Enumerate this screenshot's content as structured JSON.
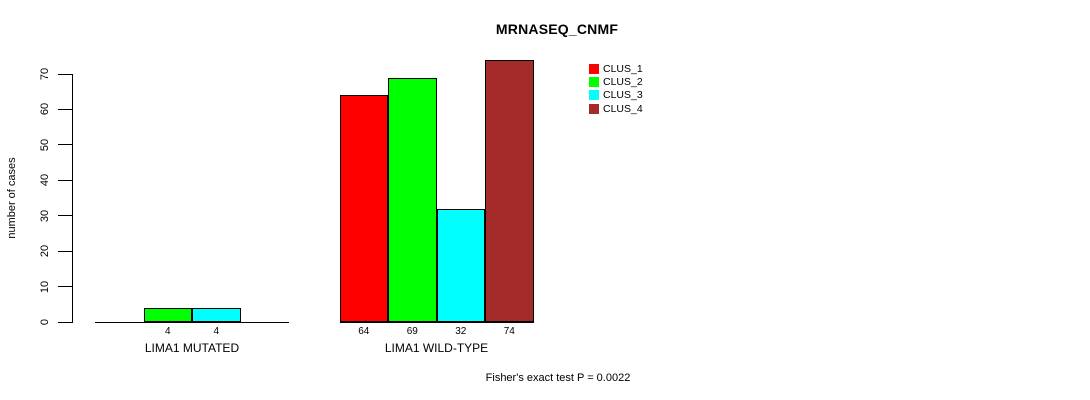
{
  "title": "MRNASEQ_CNMF",
  "y_axis_label": "number of cases",
  "footer": "Fisher's exact test P = 0.0022",
  "legend": {
    "items": [
      {
        "label": "CLUS_1",
        "color": "#FF0000"
      },
      {
        "label": "CLUS_2",
        "color": "#00FF00"
      },
      {
        "label": "CLUS_3",
        "color": "#00FFFF"
      },
      {
        "label": "CLUS_4",
        "color": "#A52A2A"
      }
    ]
  },
  "chart_data": {
    "type": "bar",
    "title": "MRNASEQ_CNMF",
    "xlabel": "",
    "ylabel": "number of cases",
    "ylim": [
      0,
      70
    ],
    "yticks": [
      0,
      10,
      20,
      30,
      40,
      50,
      60,
      70
    ],
    "grid": false,
    "legend_position": "top-right-inside",
    "categories": [
      "LIMA1 MUTATED",
      "LIMA1 WILD-TYPE"
    ],
    "series": [
      {
        "name": "CLUS_1",
        "color": "#FF0000",
        "values": [
          0,
          64
        ]
      },
      {
        "name": "CLUS_2",
        "color": "#00FF00",
        "values": [
          4,
          69
        ]
      },
      {
        "name": "CLUS_3",
        "color": "#00FFFF",
        "values": [
          4,
          32
        ]
      },
      {
        "name": "CLUS_4",
        "color": "#A52A2A",
        "values": [
          0,
          74
        ]
      }
    ],
    "bar_value_labels": [
      {
        "category": "LIMA1 MUTATED",
        "labels": [
          null,
          "4",
          "4",
          null
        ]
      },
      {
        "category": "LIMA1 WILD-TYPE",
        "labels": [
          "64",
          "69",
          "32",
          "74"
        ]
      }
    ],
    "annotation": "Fisher's exact test P = 0.0022"
  }
}
